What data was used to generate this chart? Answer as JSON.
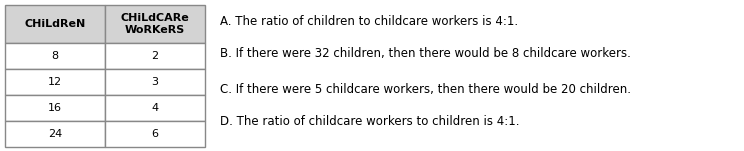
{
  "table_headers": [
    "CHiLdReN",
    "CHiLdCARe\nWoRKeRS"
  ],
  "table_rows": [
    [
      "8",
      "2"
    ],
    [
      "12",
      "3"
    ],
    [
      "16",
      "4"
    ],
    [
      "24",
      "6"
    ]
  ],
  "options": [
    "A. The ratio of children to childcare workers is 4:1.",
    "B. If there were 32 children, then there would be 8 childcare workers.",
    "C. If there were 5 childcare workers, then there would be 20 children.",
    "D. The ratio of childcare workers to children is 4:1."
  ],
  "background_color": "#ffffff",
  "header_bg": "#d3d3d3",
  "cell_bg": "#ffffff",
  "border_color": "#888888",
  "font_size": 8.0,
  "header_font_size": 8.0,
  "options_font_size": 8.5
}
